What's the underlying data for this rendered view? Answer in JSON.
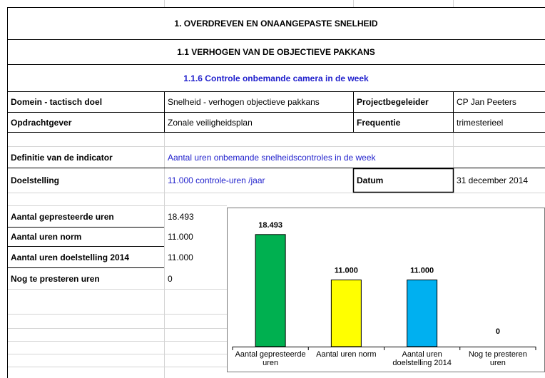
{
  "sections": [
    "1. OVERDREVEN EN ONAANGEPASTE SNELHEID",
    "1.1 VERHOGEN VAN DE OBJECTIEVE PAKKANS",
    "1.1.6 Controle onbemande camera in de week"
  ],
  "details": [
    [
      "Domein - tactisch doel",
      "Snelheid - verhogen objectieve pakkans",
      "Projectbegeleider",
      "CP Jan Peeters"
    ],
    [
      "Opdrachtgever",
      "Zonale veiligheidsplan",
      "Frequentie",
      "trimesterieel"
    ]
  ],
  "definition": {
    "label": "Definitie van de indicator",
    "text": "Aantal uren onbemande snelheidscontroles in de week"
  },
  "target": {
    "label": "Doelstelling",
    "text": "11.000 controle-uren /jaar",
    "date_label": "Datum",
    "date": "31 december 2014"
  },
  "figures": [
    [
      "Aantal gepresteerde uren",
      "18.493"
    ],
    [
      "Aantal uren norm",
      "11.000"
    ],
    [
      "Aantal uren doelstelling 2014",
      "11.000"
    ],
    [
      "Nog te presteren uren",
      "0"
    ]
  ],
  "chart_data": {
    "type": "bar",
    "categories": [
      "Aantal gepresteerde uren",
      "Aantal uren norm",
      "Aantal uren doelstelling 2014",
      "Nog te presteren uren"
    ],
    "values": [
      18493,
      11000,
      11000,
      0
    ],
    "value_labels": [
      "18.493",
      "11.000",
      "11.000",
      "0"
    ],
    "colors": [
      "#00b050",
      "#ffff00",
      "#00b0f0",
      "#7030a0"
    ],
    "ylim": [
      0,
      20000
    ]
  }
}
